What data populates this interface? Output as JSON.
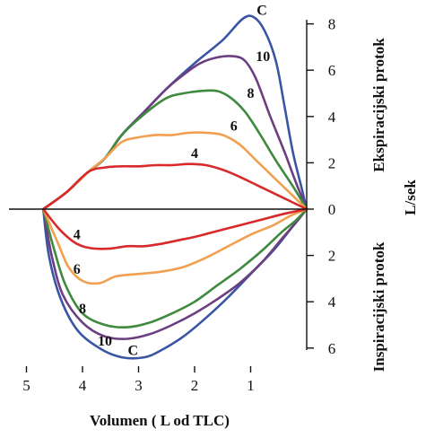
{
  "chart_data": {
    "type": "line",
    "title": "",
    "xlabel": "Volumen ( L od TLC)",
    "ylabel_top": "Ekspiracijski protok",
    "ylabel_bottom": "Inspiracijski protok",
    "yunit": "L/sek",
    "xlim": [
      5,
      0
    ],
    "ylim": [
      -6,
      8
    ],
    "x_ticks": [
      5,
      4,
      3,
      2,
      1
    ],
    "y_ticks": [
      {
        "value": 8,
        "label": "8"
      },
      {
        "value": 6,
        "label": "6"
      },
      {
        "value": 4,
        "label": "4"
      },
      {
        "value": 2,
        "label": "2"
      },
      {
        "value": 0,
        "label": "0"
      },
      {
        "value": -2,
        "label": "2"
      },
      {
        "value": -4,
        "label": "4"
      },
      {
        "value": -6,
        "label": "6"
      }
    ],
    "grid": false,
    "series": [
      {
        "name": "C",
        "color": "#3a55a4",
        "label": "C",
        "label_pos": [
          0.8,
          8.4
        ],
        "label_pos_insp": [
          3.1,
          -6.3
        ],
        "expiratory": [
          [
            4.7,
            0
          ],
          [
            4.3,
            0.7
          ],
          [
            3.9,
            1.6
          ],
          [
            3.6,
            2.2
          ],
          [
            3.3,
            3.2
          ],
          [
            2.9,
            4.2
          ],
          [
            2.5,
            5.2
          ],
          [
            2.0,
            6.3
          ],
          [
            1.5,
            7.3
          ],
          [
            1.15,
            8.2
          ],
          [
            0.95,
            8.3
          ],
          [
            0.75,
            7.7
          ],
          [
            0.55,
            6.4
          ],
          [
            0.4,
            4.5
          ],
          [
            0.25,
            2.5
          ],
          [
            0.1,
            1.0
          ],
          [
            0,
            0
          ]
        ],
        "inspiratory": [
          [
            4.7,
            0
          ],
          [
            4.6,
            -2.0
          ],
          [
            4.4,
            -3.8
          ],
          [
            4.1,
            -5.2
          ],
          [
            3.7,
            -6.0
          ],
          [
            3.3,
            -6.4
          ],
          [
            2.9,
            -6.4
          ],
          [
            2.6,
            -6.1
          ],
          [
            2.2,
            -5.5
          ],
          [
            1.8,
            -4.7
          ],
          [
            1.4,
            -3.8
          ],
          [
            1.0,
            -2.8
          ],
          [
            0.6,
            -1.8
          ],
          [
            0.3,
            -0.9
          ],
          [
            0,
            0
          ]
        ]
      },
      {
        "name": "10",
        "color": "#6b3f80",
        "label": "10",
        "label_pos": [
          0.78,
          6.4
        ],
        "label_pos_insp": [
          3.6,
          -5.9
        ],
        "expiratory": [
          [
            4.7,
            0
          ],
          [
            4.3,
            0.7
          ],
          [
            3.9,
            1.6
          ],
          [
            3.6,
            2.2
          ],
          [
            3.3,
            3.2
          ],
          [
            2.9,
            4.2
          ],
          [
            2.5,
            5.2
          ],
          [
            2.2,
            5.8
          ],
          [
            1.9,
            6.3
          ],
          [
            1.6,
            6.55
          ],
          [
            1.3,
            6.6
          ],
          [
            1.1,
            6.4
          ],
          [
            0.9,
            5.6
          ],
          [
            0.65,
            4.0
          ],
          [
            0.4,
            2.5
          ],
          [
            0.2,
            1.2
          ],
          [
            0,
            0
          ]
        ],
        "inspiratory": [
          [
            4.7,
            0
          ],
          [
            4.55,
            -2.0
          ],
          [
            4.35,
            -3.7
          ],
          [
            4.0,
            -4.9
          ],
          [
            3.6,
            -5.5
          ],
          [
            3.2,
            -5.6
          ],
          [
            2.8,
            -5.4
          ],
          [
            2.4,
            -5.0
          ],
          [
            2.0,
            -4.5
          ],
          [
            1.6,
            -3.9
          ],
          [
            1.2,
            -3.2
          ],
          [
            0.8,
            -2.3
          ],
          [
            0.45,
            -1.3
          ],
          [
            0.2,
            -0.6
          ],
          [
            0,
            0
          ]
        ]
      },
      {
        "name": "8",
        "color": "#3f8a3f",
        "label": "8",
        "label_pos": [
          1.0,
          4.8
        ],
        "label_pos_insp": [
          4.0,
          -4.5
        ],
        "expiratory": [
          [
            4.7,
            0
          ],
          [
            4.3,
            0.7
          ],
          [
            3.9,
            1.6
          ],
          [
            3.6,
            2.2
          ],
          [
            3.3,
            3.2
          ],
          [
            2.9,
            4.1
          ],
          [
            2.5,
            4.8
          ],
          [
            2.2,
            5.0
          ],
          [
            1.9,
            5.1
          ],
          [
            1.6,
            5.1
          ],
          [
            1.35,
            4.8
          ],
          [
            1.1,
            4.2
          ],
          [
            0.85,
            3.3
          ],
          [
            0.55,
            2.1
          ],
          [
            0.25,
            1.0
          ],
          [
            0,
            0
          ]
        ],
        "inspiratory": [
          [
            4.7,
            0
          ],
          [
            4.5,
            -1.8
          ],
          [
            4.3,
            -3.3
          ],
          [
            4.0,
            -4.5
          ],
          [
            3.6,
            -5.0
          ],
          [
            3.2,
            -5.1
          ],
          [
            2.8,
            -4.9
          ],
          [
            2.4,
            -4.5
          ],
          [
            2.0,
            -4.0
          ],
          [
            1.6,
            -3.3
          ],
          [
            1.2,
            -2.6
          ],
          [
            0.8,
            -1.8
          ],
          [
            0.45,
            -1.0
          ],
          [
            0.2,
            -0.5
          ],
          [
            0,
            0
          ]
        ]
      },
      {
        "name": "6",
        "color": "#f0a050",
        "label": "6",
        "label_pos": [
          1.3,
          3.4
        ],
        "label_pos_insp": [
          4.1,
          -2.8
        ],
        "expiratory": [
          [
            4.7,
            0
          ],
          [
            4.3,
            0.7
          ],
          [
            3.9,
            1.6
          ],
          [
            3.6,
            2.2
          ],
          [
            3.3,
            2.9
          ],
          [
            3.0,
            3.1
          ],
          [
            2.7,
            3.2
          ],
          [
            2.4,
            3.2
          ],
          [
            2.1,
            3.3
          ],
          [
            1.8,
            3.3
          ],
          [
            1.5,
            3.2
          ],
          [
            1.2,
            2.8
          ],
          [
            0.9,
            2.1
          ],
          [
            0.6,
            1.4
          ],
          [
            0.3,
            0.7
          ],
          [
            0,
            0
          ]
        ],
        "inspiratory": [
          [
            4.7,
            0
          ],
          [
            4.45,
            -1.4
          ],
          [
            4.25,
            -2.5
          ],
          [
            4.0,
            -3.1
          ],
          [
            3.7,
            -3.2
          ],
          [
            3.4,
            -2.9
          ],
          [
            3.0,
            -2.8
          ],
          [
            2.6,
            -2.7
          ],
          [
            2.2,
            -2.5
          ],
          [
            1.8,
            -2.1
          ],
          [
            1.4,
            -1.6
          ],
          [
            1.0,
            -1.1
          ],
          [
            0.6,
            -0.7
          ],
          [
            0.3,
            -0.3
          ],
          [
            0,
            0
          ]
        ]
      },
      {
        "name": "4",
        "color": "#d82a2a",
        "label": "4",
        "label_pos": [
          2.0,
          2.2
        ],
        "label_pos_insp": [
          4.1,
          -1.3
        ],
        "expiratory": [
          [
            4.7,
            0
          ],
          [
            4.3,
            0.7
          ],
          [
            3.9,
            1.6
          ],
          [
            3.6,
            1.8
          ],
          [
            3.3,
            1.85
          ],
          [
            3.0,
            1.85
          ],
          [
            2.7,
            1.9
          ],
          [
            2.4,
            1.9
          ],
          [
            2.1,
            1.95
          ],
          [
            1.8,
            1.9
          ],
          [
            1.5,
            1.7
          ],
          [
            1.2,
            1.4
          ],
          [
            0.9,
            1.05
          ],
          [
            0.6,
            0.7
          ],
          [
            0.3,
            0.35
          ],
          [
            0,
            0
          ]
        ],
        "inspiratory": [
          [
            4.7,
            0
          ],
          [
            4.4,
            -0.9
          ],
          [
            4.1,
            -1.5
          ],
          [
            3.8,
            -1.7
          ],
          [
            3.5,
            -1.7
          ],
          [
            3.2,
            -1.6
          ],
          [
            2.9,
            -1.6
          ],
          [
            2.6,
            -1.5
          ],
          [
            2.3,
            -1.35
          ],
          [
            2.0,
            -1.2
          ],
          [
            1.6,
            -0.95
          ],
          [
            1.2,
            -0.7
          ],
          [
            0.8,
            -0.45
          ],
          [
            0.4,
            -0.2
          ],
          [
            0,
            0
          ]
        ]
      }
    ]
  }
}
